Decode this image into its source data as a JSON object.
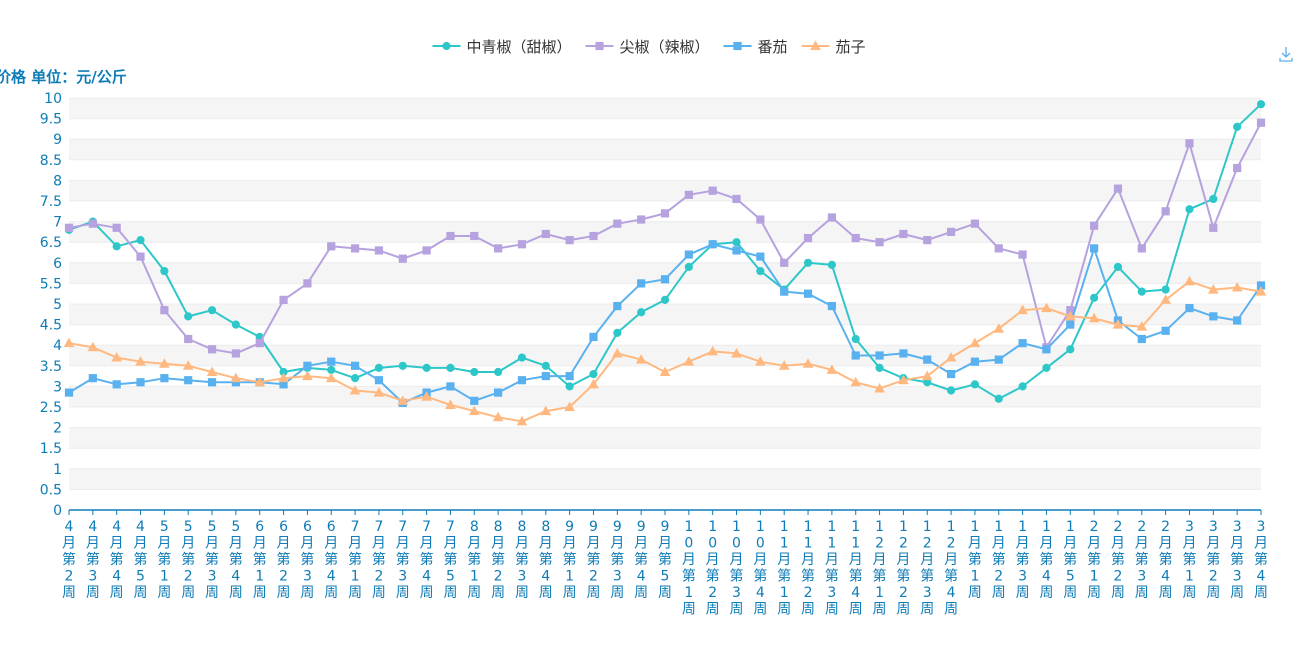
{
  "toolbar": {
    "download_icon": "download-icon"
  },
  "chart_data": {
    "type": "line",
    "ylabel": "价格 单位：元/公斤",
    "ylim": [
      0,
      10
    ],
    "yticks": [
      "0",
      "0.5",
      "1",
      "1.5",
      "2",
      "2.5",
      "3",
      "3.5",
      "4",
      "4.5",
      "5",
      "5.5",
      "6",
      "6.5",
      "7",
      "7.5",
      "8",
      "8.5",
      "9",
      "9.5",
      "10"
    ],
    "grid": true,
    "legend_position": "top-center",
    "categories": [
      "4月第2周",
      "4月第3周",
      "4月第4周",
      "4月第5周",
      "5月第1周",
      "5月第2周",
      "5月第3周",
      "5月第4周",
      "6月第1周",
      "6月第2周",
      "6月第3周",
      "6月第4周",
      "7月第1周",
      "7月第2周",
      "7月第3周",
      "7月第4周",
      "7月第5周",
      "8月第1周",
      "8月第2周",
      "8月第3周",
      "8月第4周",
      "9月第1周",
      "9月第2周",
      "9月第3周",
      "9月第4周",
      "9月第5周",
      "10月第1周",
      "10月第2周",
      "10月第3周",
      "10月第4周",
      "11月第1周",
      "11月第2周",
      "11月第3周",
      "11月第4周",
      "12月第1周",
      "12月第2周",
      "12月第3周",
      "12月第4周",
      "1月第1周",
      "1月第2周",
      "1月第3周",
      "1月第4周",
      "1月第5周",
      "2月第1周",
      "2月第2周",
      "2月第3周",
      "2月第4周",
      "3月第1周",
      "3月第2周",
      "3月第3周",
      "3月第4周"
    ],
    "series": [
      {
        "name": "中青椒（甜椒）",
        "color": "#2ec7c9",
        "marker": "circle",
        "values": [
          6.8,
          7.0,
          6.4,
          6.55,
          5.8,
          4.7,
          4.85,
          4.5,
          4.2,
          3.35,
          3.45,
          3.4,
          3.2,
          3.45,
          3.5,
          3.45,
          3.45,
          3.35,
          3.35,
          3.7,
          3.5,
          3.0,
          3.3,
          4.3,
          4.8,
          5.1,
          5.9,
          6.45,
          6.5,
          5.8,
          5.35,
          6.0,
          5.95,
          4.15,
          3.45,
          3.2,
          3.1,
          2.9,
          3.05,
          2.7,
          3.0,
          3.45,
          3.9,
          5.15,
          5.9,
          5.3,
          5.35,
          7.3,
          7.55,
          9.3,
          9.85
        ]
      },
      {
        "name": "尖椒（辣椒）",
        "color": "#b6a2de",
        "marker": "square",
        "values": [
          6.85,
          6.95,
          6.85,
          6.15,
          4.85,
          4.15,
          3.9,
          3.8,
          4.05,
          5.1,
          5.5,
          6.4,
          6.35,
          6.3,
          6.1,
          6.3,
          6.65,
          6.65,
          6.35,
          6.45,
          6.7,
          6.55,
          6.65,
          6.95,
          7.05,
          7.2,
          7.65,
          7.75,
          7.55,
          7.05,
          6.0,
          6.6,
          7.1,
          6.6,
          6.5,
          6.7,
          6.55,
          6.75,
          6.95,
          6.35,
          6.2,
          3.95,
          4.85,
          6.9,
          7.8,
          6.35,
          7.25,
          8.9,
          6.85,
          8.3,
          9.4
        ]
      },
      {
        "name": "番茄",
        "color": "#5ab1ef",
        "marker": "square",
        "values": [
          2.85,
          3.2,
          3.05,
          3.1,
          3.2,
          3.15,
          3.1,
          3.1,
          3.1,
          3.05,
          3.5,
          3.6,
          3.5,
          3.15,
          2.6,
          2.85,
          3.0,
          2.65,
          2.85,
          3.15,
          3.25,
          3.25,
          4.2,
          4.95,
          5.5,
          5.6,
          6.2,
          6.45,
          6.3,
          6.15,
          5.3,
          5.25,
          4.95,
          3.75,
          3.75,
          3.8,
          3.65,
          3.3,
          3.6,
          3.65,
          4.05,
          3.9,
          4.5,
          6.35,
          4.6,
          4.15,
          4.35,
          4.9,
          4.7,
          4.6,
          5.45
        ]
      },
      {
        "name": "茄子",
        "color": "#ffb980",
        "marker": "triangle",
        "values": [
          4.05,
          3.95,
          3.7,
          3.6,
          3.55,
          3.5,
          3.35,
          3.2,
          3.1,
          3.2,
          3.25,
          3.2,
          2.9,
          2.85,
          2.65,
          2.75,
          2.55,
          2.4,
          2.25,
          2.15,
          2.4,
          2.5,
          3.05,
          3.8,
          3.65,
          3.35,
          3.6,
          3.85,
          3.8,
          3.6,
          3.5,
          3.55,
          3.4,
          3.1,
          2.95,
          3.15,
          3.25,
          3.7,
          4.05,
          4.4,
          4.85,
          4.9,
          4.7,
          4.65,
          4.5,
          4.45,
          5.1,
          5.55,
          5.35,
          5.4,
          5.3
        ]
      }
    ]
  }
}
